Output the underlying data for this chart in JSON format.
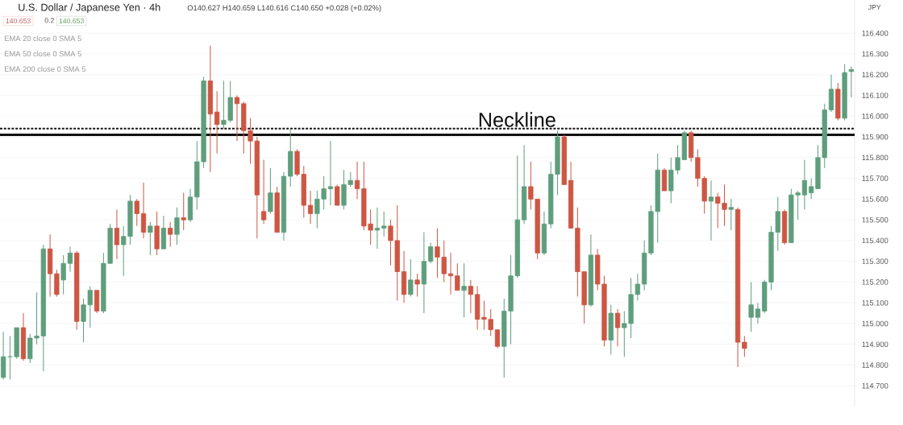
{
  "chart_data": {
    "type": "candlestick",
    "title": "U.S. Dollar / Japanese Yen · 4h",
    "ylabel": "JPY",
    "annotations": [
      "O140.627 H140.659 L140.616 C140.650 +0.028 (+0.02%)",
      "140.653",
      "0.2",
      "140.653",
      "EMA 20 close 0 SMA 5",
      "EMA 50 close 0 SMA 5",
      "EMA 200 close 0 SMA 5"
    ],
    "categories": [
      null,
      null,
      null,
      null,
      null,
      null,
      null,
      null,
      null,
      null,
      null,
      null,
      null,
      null,
      null,
      null,
      null,
      null,
      null,
      null,
      null,
      null,
      null,
      null,
      null,
      null,
      null,
      null,
      null,
      null,
      null,
      null,
      null,
      null,
      null,
      null,
      null,
      null,
      null,
      null,
      null,
      null,
      null,
      null,
      null,
      null,
      null,
      null,
      null,
      null,
      null,
      null,
      null,
      null,
      null,
      null,
      null,
      null,
      null,
      null,
      null,
      null,
      null,
      null,
      null,
      null,
      null,
      null,
      null,
      null,
      null,
      null,
      null,
      null,
      null,
      null,
      null,
      null,
      null,
      null,
      null,
      null,
      null,
      null,
      null,
      null,
      null,
      null,
      null,
      null,
      null,
      null,
      null,
      null,
      null,
      null,
      null,
      null,
      null,
      null,
      null,
      null,
      null,
      null,
      null,
      null,
      null,
      null,
      null,
      null,
      null,
      null,
      null,
      null,
      null,
      null,
      null,
      null,
      null,
      null,
      null,
      null,
      null,
      null,
      null,
      null,
      null,
      null
    ],
    "ohlc": [
      [
        114.74,
        114.96,
        114.73,
        114.84
      ],
      [
        114.84,
        114.94,
        114.73,
        114.84
      ],
      [
        114.84,
        114.98,
        114.83,
        114.98
      ],
      [
        114.98,
        115.05,
        114.82,
        114.83
      ],
      [
        114.83,
        114.95,
        114.81,
        114.93
      ],
      [
        114.93,
        115.15,
        114.9,
        114.94
      ],
      [
        114.94,
        115.38,
        114.77,
        115.36
      ],
      [
        115.36,
        115.43,
        115.13,
        115.24
      ],
      [
        115.24,
        115.26,
        115.13,
        115.14
      ],
      [
        115.21,
        115.33,
        115.14,
        115.29
      ],
      [
        115.29,
        115.37,
        115.25,
        115.34
      ],
      [
        115.34,
        115.35,
        114.97,
        115.01
      ],
      [
        115.01,
        115.12,
        114.91,
        115.09
      ],
      [
        115.09,
        115.18,
        114.98,
        115.16
      ],
      [
        115.16,
        115.16,
        115.05,
        115.06
      ],
      [
        115.06,
        115.34,
        115.05,
        115.29
      ],
      [
        115.29,
        115.48,
        115.29,
        115.46
      ],
      [
        115.46,
        115.55,
        115.31,
        115.38
      ],
      [
        115.38,
        115.47,
        115.23,
        115.42
      ],
      [
        115.42,
        115.62,
        115.38,
        115.59
      ],
      [
        115.59,
        115.6,
        115.47,
        115.53
      ],
      [
        115.53,
        115.68,
        115.41,
        115.44
      ],
      [
        115.44,
        115.49,
        115.33,
        115.47
      ],
      [
        115.47,
        115.54,
        115.33,
        115.36
      ],
      [
        115.36,
        115.52,
        115.36,
        115.46
      ],
      [
        115.46,
        115.49,
        115.37,
        115.43
      ],
      [
        115.43,
        115.56,
        115.38,
        115.51
      ],
      [
        115.51,
        115.63,
        115.45,
        115.5
      ],
      [
        115.5,
        115.65,
        115.49,
        115.61
      ],
      [
        115.61,
        115.88,
        115.55,
        115.78
      ],
      [
        115.78,
        116.19,
        115.75,
        116.17
      ],
      [
        116.17,
        116.34,
        115.73,
        116.01
      ],
      [
        116.02,
        116.12,
        115.82,
        115.96
      ],
      [
        115.96,
        116.17,
        115.94,
        115.98
      ],
      [
        115.98,
        116.17,
        115.97,
        116.09
      ],
      [
        116.09,
        116.1,
        115.88,
        116.06
      ],
      [
        116.06,
        116.07,
        115.82,
        115.93
      ],
      [
        115.93,
        115.99,
        115.77,
        115.88
      ],
      [
        115.88,
        115.9,
        115.41,
        115.62
      ],
      [
        115.54,
        115.79,
        115.48,
        115.5
      ],
      [
        115.54,
        115.75,
        115.53,
        115.63
      ],
      [
        115.63,
        115.66,
        115.44,
        115.44
      ],
      [
        115.44,
        115.73,
        115.4,
        115.71
      ],
      [
        115.71,
        115.94,
        115.66,
        115.83
      ],
      [
        115.83,
        115.84,
        115.71,
        115.72
      ],
      [
        115.72,
        115.76,
        115.51,
        115.57
      ],
      [
        115.57,
        115.64,
        115.48,
        115.53
      ],
      [
        115.53,
        115.64,
        115.46,
        115.6
      ],
      [
        115.6,
        115.71,
        115.55,
        115.65
      ],
      [
        115.65,
        115.88,
        115.57,
        115.66
      ],
      [
        115.66,
        115.67,
        115.57,
        115.57
      ],
      [
        115.57,
        115.74,
        115.55,
        115.67
      ],
      [
        115.67,
        115.73,
        115.66,
        115.69
      ],
      [
        115.69,
        115.78,
        115.6,
        115.65
      ],
      [
        115.65,
        115.78,
        115.45,
        115.47
      ],
      [
        115.48,
        115.55,
        115.38,
        115.45
      ],
      [
        115.45,
        115.56,
        115.36,
        115.46
      ],
      [
        115.46,
        115.54,
        115.42,
        115.47
      ],
      [
        115.47,
        115.5,
        115.28,
        115.4
      ],
      [
        115.4,
        115.57,
        115.11,
        115.25
      ],
      [
        115.25,
        115.35,
        115.1,
        115.14
      ],
      [
        115.14,
        115.31,
        115.13,
        115.21
      ],
      [
        115.21,
        115.24,
        115.13,
        115.19
      ],
      [
        115.19,
        115.44,
        115.05,
        115.3
      ],
      [
        115.3,
        115.39,
        115.29,
        115.37
      ],
      [
        115.37,
        115.46,
        115.22,
        115.32
      ],
      [
        115.32,
        115.4,
        115.2,
        115.24
      ],
      [
        115.24,
        115.34,
        115.14,
        115.23
      ],
      [
        115.23,
        115.29,
        115.16,
        115.16
      ],
      [
        115.16,
        115.29,
        115.03,
        115.18
      ],
      [
        115.18,
        115.21,
        115.05,
        115.14
      ],
      [
        115.14,
        115.18,
        114.97,
        115.02
      ],
      [
        115.03,
        115.11,
        114.97,
        115.02
      ],
      [
        115.02,
        115.07,
        114.94,
        114.97
      ],
      [
        114.97,
        114.97,
        114.88,
        114.89
      ],
      [
        114.89,
        115.12,
        114.74,
        115.06
      ],
      [
        115.06,
        115.33,
        114.9,
        115.23
      ],
      [
        115.23,
        115.81,
        115.22,
        115.5
      ],
      [
        115.5,
        115.86,
        115.48,
        115.66
      ],
      [
        115.66,
        115.78,
        115.55,
        115.6
      ],
      [
        115.6,
        115.6,
        115.31,
        115.34
      ],
      [
        115.34,
        115.54,
        115.33,
        115.48
      ],
      [
        115.48,
        115.78,
        115.46,
        115.72
      ],
      [
        115.72,
        115.93,
        115.62,
        115.9
      ],
      [
        115.9,
        115.91,
        115.67,
        115.67
      ],
      [
        115.69,
        115.78,
        115.46,
        115.46
      ],
      [
        115.46,
        115.56,
        115.13,
        115.25
      ],
      [
        115.25,
        115.25,
        115.0,
        115.09
      ],
      [
        115.09,
        115.43,
        115.08,
        115.33
      ],
      [
        115.33,
        115.36,
        115.16,
        115.19
      ],
      [
        115.19,
        115.23,
        114.89,
        114.92
      ],
      [
        114.92,
        115.09,
        114.85,
        115.05
      ],
      [
        115.05,
        115.07,
        114.89,
        114.98
      ],
      [
        114.98,
        115.06,
        114.84,
        115.0
      ],
      [
        115.0,
        115.22,
        114.93,
        115.14
      ],
      [
        115.14,
        115.24,
        115.11,
        115.19
      ],
      [
        115.19,
        115.4,
        115.16,
        115.34
      ],
      [
        115.34,
        115.57,
        115.33,
        115.54
      ],
      [
        115.54,
        115.82,
        115.39,
        115.74
      ],
      [
        115.74,
        115.75,
        115.64,
        115.64
      ],
      [
        115.64,
        115.8,
        115.58,
        115.74
      ],
      [
        115.74,
        115.86,
        115.72,
        115.8
      ],
      [
        115.79,
        115.93,
        115.79,
        115.92
      ],
      [
        115.92,
        115.93,
        115.78,
        115.8
      ],
      [
        115.8,
        115.84,
        115.66,
        115.7
      ],
      [
        115.7,
        115.71,
        115.53,
        115.59
      ],
      [
        115.59,
        115.69,
        115.4,
        115.61
      ],
      [
        115.61,
        115.63,
        115.46,
        115.58
      ],
      [
        115.58,
        115.67,
        115.47,
        115.55
      ],
      [
        115.55,
        115.6,
        115.45,
        115.56
      ],
      [
        115.55,
        115.56,
        114.79,
        114.91
      ],
      [
        114.91,
        114.94,
        114.84,
        114.88
      ],
      [
        115.03,
        115.2,
        114.96,
        115.09
      ],
      [
        115.03,
        115.1,
        115.0,
        115.07
      ],
      [
        115.06,
        115.21,
        115.05,
        115.2
      ],
      [
        115.2,
        115.47,
        115.16,
        115.44
      ],
      [
        115.44,
        115.61,
        115.35,
        115.54
      ],
      [
        115.54,
        115.55,
        115.38,
        115.39
      ],
      [
        115.39,
        115.65,
        115.39,
        115.62
      ],
      [
        115.62,
        115.64,
        115.5,
        115.63
      ],
      [
        115.62,
        115.79,
        115.55,
        115.69
      ],
      [
        115.63,
        115.7,
        115.6,
        115.66
      ],
      [
        115.65,
        115.86,
        115.65,
        115.8
      ],
      [
        115.8,
        116.06,
        115.75,
        116.03
      ],
      [
        116.03,
        116.2,
        116.02,
        116.13
      ],
      [
        116.13,
        116.16,
        115.98,
        115.99
      ],
      [
        115.99,
        116.25,
        115.98,
        116.21
      ],
      [
        116.215,
        116.24,
        116.09,
        116.225
      ]
    ],
    "colors": [
      "#5f9e7d",
      "#5f9e7d",
      "#5f9e7d",
      "#cd5744",
      "#5f9e7d",
      "#5f9e7d",
      "#5f9e7d",
      "#cd5744",
      "#cd5744",
      "#5f9e7d",
      "#5f9e7d",
      "#cd5744",
      "#5f9e7d",
      "#5f9e7d",
      "#cd5744",
      "#5f9e7d",
      "#5f9e7d",
      "#cd5744",
      "#5f9e7d",
      "#5f9e7d",
      "#cd5744",
      "#cd5744",
      "#5f9e7d",
      "#cd5744",
      "#5f9e7d",
      "#cd5744",
      "#5f9e7d",
      "#cd5744",
      "#5f9e7d",
      "#5f9e7d",
      "#5f9e7d",
      "#cd5744",
      "#cd5744",
      "#5f9e7d",
      "#5f9e7d",
      "#cd5744",
      "#cd5744",
      "#cd5744",
      "#cd5744",
      "#cd5744",
      "#5f9e7d",
      "#cd5744",
      "#5f9e7d",
      "#5f9e7d",
      "#cd5744",
      "#cd5744",
      "#cd5744",
      "#5f9e7d",
      "#5f9e7d",
      "#5f9e7d",
      "#cd5744",
      "#5f9e7d",
      "#5f9e7d",
      "#cd5744",
      "#cd5744",
      "#cd5744",
      "#5f9e7d",
      "#5f9e7d",
      "#cd5744",
      "#cd5744",
      "#cd5744",
      "#5f9e7d",
      "#cd5744",
      "#5f9e7d",
      "#5f9e7d",
      "#cd5744",
      "#cd5744",
      "#cd5744",
      "#cd5744",
      "#5f9e7d",
      "#cd5744",
      "#cd5744",
      "#cd5744",
      "#cd5744",
      "#cd5744",
      "#5f9e7d",
      "#5f9e7d",
      "#5f9e7d",
      "#5f9e7d",
      "#cd5744",
      "#cd5744",
      "#5f9e7d",
      "#5f9e7d",
      "#5f9e7d",
      "#cd5744",
      "#cd5744",
      "#cd5744",
      "#cd5744",
      "#5f9e7d",
      "#cd5744",
      "#cd5744",
      "#5f9e7d",
      "#cd5744",
      "#5f9e7d",
      "#5f9e7d",
      "#5f9e7d",
      "#5f9e7d",
      "#5f9e7d",
      "#5f9e7d",
      "#cd5744",
      "#5f9e7d",
      "#5f9e7d",
      "#5f9e7d",
      "#cd5744",
      "#cd5744",
      "#cd5744",
      "#5f9e7d",
      "#cd5744",
      "#cd5744",
      "#5f9e7d",
      "#cd5744",
      "#cd5744",
      "#5f9e7d",
      "#5f9e7d",
      "#5f9e7d",
      "#5f9e7d",
      "#5f9e7d",
      "#cd5744",
      "#5f9e7d",
      "#5f9e7d",
      "#5f9e7d",
      "#5f9e7d",
      "#5f9e7d",
      "#5f9e7d",
      "#5f9e7d",
      "#cd5744",
      "#5f9e7d",
      "#5f9e7d"
    ],
    "ylim": [
      114.6,
      116.56
    ],
    "yticks": [
      {
        "value": 114.7,
        "label": "114.700"
      },
      {
        "value": 114.8,
        "label": "114.800"
      },
      {
        "value": 114.9,
        "label": "114.900"
      },
      {
        "value": 115.0,
        "label": "115.000"
      },
      {
        "value": 115.1,
        "label": "115.100"
      },
      {
        "value": 115.2,
        "label": "115.200"
      },
      {
        "value": 115.3,
        "label": "115.300"
      },
      {
        "value": 115.4,
        "label": "115.400"
      },
      {
        "value": 115.5,
        "label": "115.500"
      },
      {
        "value": 115.6,
        "label": "115.600"
      },
      {
        "value": 115.7,
        "label": "115.700"
      },
      {
        "value": 115.8,
        "label": "115.800"
      },
      {
        "value": 115.9,
        "label": "115.900"
      },
      {
        "value": 116.0,
        "label": "116.000"
      },
      {
        "value": 116.1,
        "label": "116.100"
      },
      {
        "value": 116.2,
        "label": "116.200"
      },
      {
        "value": 116.3,
        "label": "116.300"
      },
      {
        "value": 116.4,
        "label": "116.400"
      }
    ],
    "grid": "y",
    "ref_lines": [
      {
        "axis": "y",
        "value": 115.91,
        "label": "Neckline",
        "color": "#111111",
        "line_style": "solid"
      },
      {
        "axis": "y",
        "value": 115.94,
        "color": "#111111",
        "line_style": "dashed"
      }
    ]
  }
}
